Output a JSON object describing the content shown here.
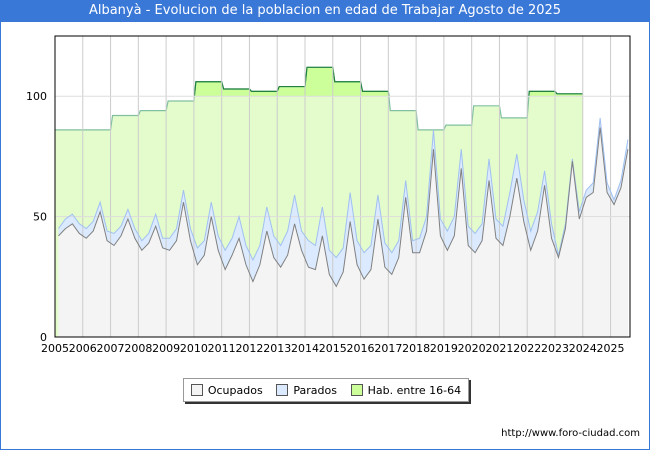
{
  "chart_data": {
    "type": "area",
    "title": "Albanyà - Evolucion de la poblacion en edad de Trabajar Agosto de 2025",
    "xlabel": "",
    "ylabel": "",
    "ylim": [
      0,
      125
    ],
    "yticks": [
      0,
      50,
      100
    ],
    "xticks": [
      "2005",
      "2006",
      "2007",
      "2008",
      "2009",
      "2010",
      "2011",
      "2012",
      "2013",
      "2014",
      "2015",
      "2016",
      "2017",
      "2018",
      "2019",
      "2020",
      "2021",
      "2022",
      "2023",
      "2024",
      "2025"
    ],
    "xlim": [
      2005,
      2025.7
    ],
    "grid": true,
    "legend_position": "bottom",
    "hab_years": [
      2005,
      2006,
      2007,
      2008,
      2009,
      2010,
      2011,
      2012,
      2013,
      2014,
      2015,
      2016,
      2017,
      2018,
      2019,
      2020,
      2021,
      2022,
      2023
    ],
    "hab_values": [
      86,
      86,
      92,
      94,
      98,
      106,
      103,
      102,
      104,
      112,
      106,
      102,
      94,
      86,
      88,
      96,
      91,
      102,
      101
    ],
    "quarter_start": 2005,
    "ocupados": [
      42,
      45,
      47,
      43,
      41,
      44,
      52,
      40,
      38,
      42,
      49,
      41,
      36,
      39,
      46,
      37,
      36,
      40,
      56,
      40,
      30,
      34,
      50,
      36,
      28,
      34,
      41,
      30,
      23,
      30,
      44,
      33,
      29,
      34,
      47,
      36,
      29,
      28,
      42,
      26,
      21,
      27,
      48,
      30,
      24,
      28,
      49,
      29,
      26,
      33,
      58,
      35,
      35,
      44,
      78,
      42,
      36,
      42,
      70,
      38,
      35,
      40,
      65,
      41,
      38,
      50,
      66,
      48,
      36,
      44,
      63,
      41,
      33,
      45,
      73,
      49,
      58,
      60,
      87,
      60,
      55,
      62,
      78
    ],
    "parados": [
      3,
      4,
      4,
      4,
      4,
      4,
      4,
      4,
      5,
      4,
      4,
      4,
      4,
      4,
      5,
      4,
      5,
      5,
      5,
      5,
      7,
      6,
      6,
      6,
      8,
      7,
      9,
      8,
      9,
      8,
      10,
      9,
      9,
      10,
      12,
      8,
      11,
      10,
      12,
      10,
      12,
      10,
      12,
      10,
      11,
      10,
      10,
      10,
      9,
      7,
      7,
      5,
      6,
      6,
      8,
      7,
      8,
      8,
      8,
      8,
      8,
      7,
      9,
      8,
      8,
      10,
      10,
      9,
      8,
      8,
      6,
      6,
      1,
      2,
      1,
      3,
      3,
      4,
      4,
      4,
      2,
      3,
      4
    ],
    "series": [
      {
        "name": "Ocupados",
        "color": "#f4f4f4",
        "line": "#808080"
      },
      {
        "name": "Parados",
        "color": "#dbeafe",
        "line": "#a0c0f0"
      },
      {
        "name": "Hab. entre 16-64",
        "color": "#e4fccc",
        "line": "#80c080"
      }
    ]
  },
  "footer": {
    "url": "http://www.foro-ciudad.com"
  }
}
